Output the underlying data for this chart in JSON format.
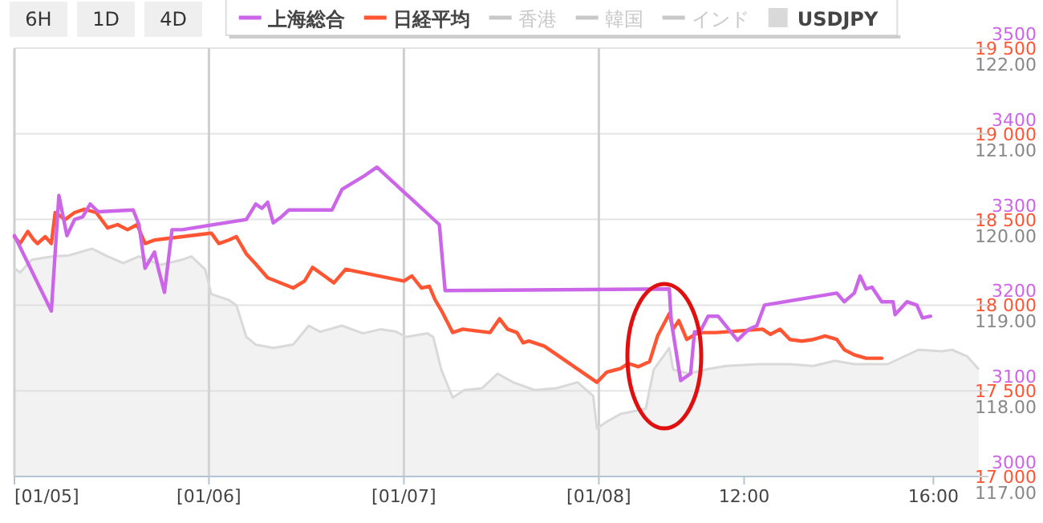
{
  "chart_data": {
    "type": "line",
    "legend": "top",
    "grid": "y",
    "xlim": [
      -3.42,
      16.96
    ],
    "xticks": [
      {
        "value": -3.42,
        "label": "[01/05]"
      },
      {
        "value": 0.69,
        "label": "[01/06]"
      },
      {
        "value": 4.81,
        "label": "[01/07]"
      },
      {
        "value": 8.93,
        "label": "[01/08]"
      },
      {
        "value": 12,
        "label": "12:00"
      },
      {
        "value": 16,
        "label": "16:00"
      }
    ],
    "ylim": [
      3000,
      3500
    ],
    "yticks": [
      3000,
      3100,
      3200,
      3300,
      3400,
      3500
    ],
    "y2lim": [
      17000,
      19500
    ],
    "y2ticks": [
      {
        "value": 17000,
        "label": "17 000"
      },
      {
        "value": 17500,
        "label": "17 500"
      },
      {
        "value": 18000,
        "label": "18 000"
      },
      {
        "value": 18500,
        "label": "18 500"
      },
      {
        "value": 19000,
        "label": "19 000"
      },
      {
        "value": 19500,
        "label": "19 500"
      }
    ],
    "y3lim": [
      117,
      122
    ],
    "y3ticks": [
      {
        "value": 117,
        "label": "117.00"
      },
      {
        "value": 118,
        "label": "118.00"
      },
      {
        "value": 119,
        "label": "119.00"
      },
      {
        "value": 120,
        "label": "120.00"
      },
      {
        "value": 121,
        "label": "121.00"
      },
      {
        "value": 122,
        "label": "122.00"
      }
    ],
    "ref_lines": [
      {
        "axis": "x",
        "value": 0.69
      },
      {
        "axis": "x",
        "value": 4.81
      },
      {
        "axis": "x",
        "value": 8.93
      }
    ],
    "annotations": [
      "6H",
      "1D",
      "4D"
    ],
    "series": [
      {
        "name": "上海総合",
        "axis": "y",
        "color": "#cc66e8",
        "x": [
          -3.42,
          -2.64,
          -2.48,
          -2.31,
          -2.15,
          -1.98,
          -1.82,
          -1.65,
          -0.91,
          -0.79,
          -0.66,
          -0.46,
          -0.38,
          -0.25,
          -0.09,
          0.12,
          1.48,
          1.68,
          1.81,
          1.93,
          2.05,
          2.22,
          2.38,
          3.29,
          3.5,
          3.74,
          3.95,
          4.24,
          5.56,
          5.68,
          10.42,
          10.46,
          10.66,
          10.87,
          10.95,
          11.07,
          11.24,
          11.45,
          11.86,
          12.1,
          12.27,
          12.43,
          13.96,
          14.12,
          14.33,
          14.45,
          14.58,
          14.7,
          14.91,
          15.15,
          15.19,
          15.44,
          15.65,
          15.77,
          15.94
        ],
        "values": [
          3281,
          3193,
          3328,
          3281,
          3300,
          3303,
          3318,
          3309,
          3311,
          3294,
          3243,
          3262,
          3243,
          3215,
          3288,
          3288,
          3300,
          3318,
          3313,
          3320,
          3296,
          3303,
          3311,
          3311,
          3335,
          3343,
          3350,
          3361,
          3294,
          3217,
          3219,
          3182,
          3112,
          3120,
          3169,
          3169,
          3187,
          3187,
          3159,
          3172,
          3176,
          3200,
          3214,
          3204,
          3214,
          3234,
          3219,
          3221,
          3204,
          3204,
          3189,
          3204,
          3200,
          3185,
          3187
        ]
      },
      {
        "name": "日経平均",
        "axis": "y2",
        "color": "#ff5533",
        "x": [
          -3.42,
          -3.3,
          -3.14,
          -3.01,
          -2.93,
          -2.77,
          -2.64,
          -2.56,
          -2.35,
          -2.15,
          -1.94,
          -1.69,
          -1.45,
          -1.24,
          -1.03,
          -0.83,
          -0.66,
          -0.46,
          0.74,
          0.9,
          1.11,
          1.27,
          1.48,
          1.68,
          1.93,
          2.47,
          2.71,
          2.88,
          3.13,
          3.33,
          3.58,
          3.74,
          4.81,
          4.98,
          5.18,
          5.35,
          5.47,
          5.6,
          5.84,
          6.05,
          6.63,
          6.83,
          7.0,
          7.2,
          7.33,
          7.45,
          7.78,
          8.89,
          9.1,
          9.39,
          9.55,
          9.76,
          10.0,
          10.17,
          10.42,
          10.5,
          10.62,
          10.79,
          11.03,
          11.4,
          12.39,
          12.56,
          12.76,
          12.97,
          13.22,
          13.46,
          13.71,
          13.96,
          14.12,
          14.33,
          14.58,
          14.91
        ],
        "values": [
          18400,
          18360,
          18430,
          18380,
          18360,
          18400,
          18360,
          18540,
          18500,
          18540,
          18560,
          18540,
          18450,
          18470,
          18440,
          18470,
          18360,
          18380,
          18420,
          18360,
          18380,
          18400,
          18300,
          18240,
          18160,
          18100,
          18140,
          18220,
          18170,
          18130,
          18210,
          18200,
          18140,
          18170,
          18100,
          18110,
          18030,
          17970,
          17840,
          17860,
          17840,
          17920,
          17860,
          17840,
          17780,
          17790,
          17760,
          17550,
          17610,
          17630,
          17660,
          17640,
          17670,
          17820,
          17950,
          17860,
          17910,
          17800,
          17840,
          17840,
          17860,
          17830,
          17860,
          17800,
          17790,
          17800,
          17820,
          17800,
          17740,
          17710,
          17690,
          17690
        ]
      },
      {
        "name": "香港",
        "color": "#c8c8c8"
      },
      {
        "name": "韓国",
        "color": "#c8c8c8"
      },
      {
        "name": "インド",
        "color": "#c8c8c8"
      },
      {
        "name": "USDJPY",
        "type": "area",
        "axis": "y3",
        "color": "#d9d9d9",
        "x": [
          -3.42,
          -3.3,
          -3.05,
          -2.6,
          -2.27,
          -1.78,
          -1.45,
          -1.12,
          -0.79,
          -0.33,
          0.12,
          0.32,
          0.61,
          0.74,
          1.11,
          1.27,
          1.48,
          1.68,
          2.05,
          2.47,
          2.8,
          3.04,
          3.5,
          3.95,
          4.32,
          4.65,
          4.86,
          5.31,
          5.43,
          5.6,
          5.84,
          6.09,
          6.46,
          6.79,
          7.12,
          7.57,
          8.03,
          8.48,
          8.81,
          8.89,
          9.1,
          9.39,
          9.92,
          10.09,
          10.42,
          10.5,
          10.83,
          11.2,
          11.61,
          12.31,
          12.97,
          13.46,
          13.92,
          14.33,
          15.03,
          15.69,
          16.18,
          16.39,
          16.72,
          16.96
        ],
        "values": [
          119.43,
          119.38,
          119.53,
          119.57,
          119.58,
          119.66,
          119.57,
          119.49,
          119.57,
          119.47,
          119.53,
          119.57,
          119.42,
          119.13,
          119.06,
          119.0,
          118.63,
          118.54,
          118.5,
          118.54,
          118.76,
          118.69,
          118.76,
          118.67,
          118.72,
          118.69,
          118.63,
          118.67,
          118.63,
          118.25,
          117.92,
          118.01,
          118.03,
          118.2,
          118.1,
          118.01,
          118.03,
          118.1,
          117.94,
          117.56,
          117.64,
          117.73,
          117.79,
          118.25,
          118.5,
          118.25,
          118.2,
          118.25,
          118.29,
          118.31,
          118.31,
          118.29,
          118.35,
          118.31,
          118.31,
          118.48,
          118.46,
          118.48,
          118.4,
          118.25
        ]
      }
    ]
  }
}
